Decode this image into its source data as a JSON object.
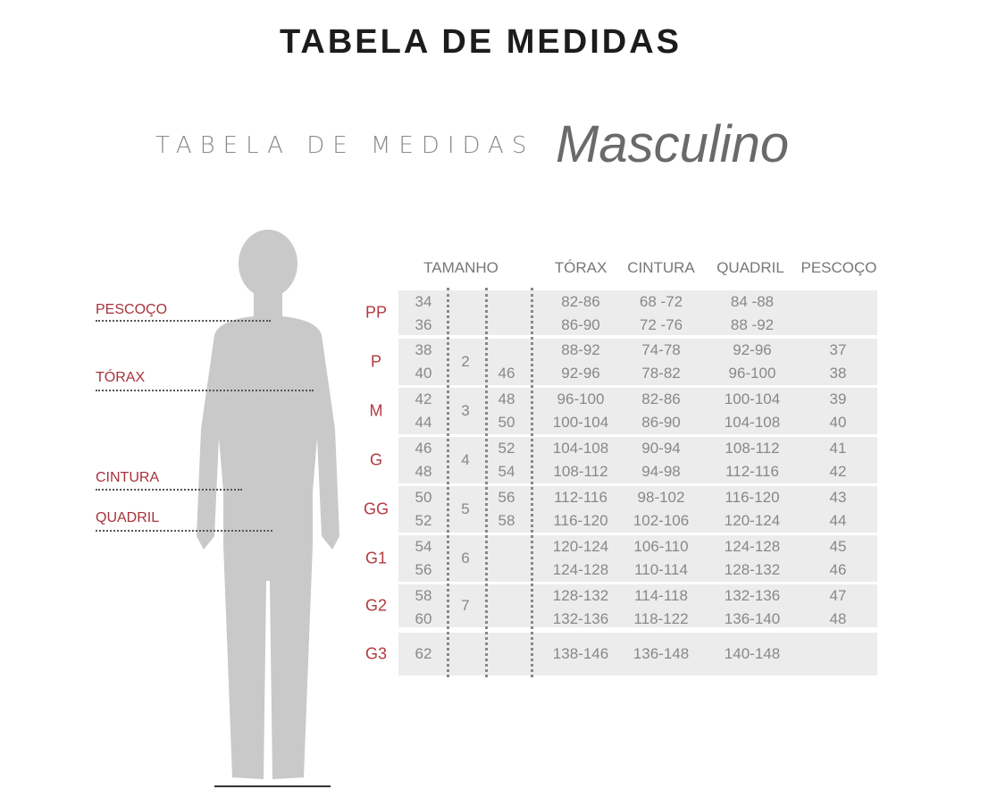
{
  "title": "TABELA DE MEDIDAS",
  "subtitle": "TABELA DE MEDIDAS",
  "subtitle_emphasis": "Masculino",
  "colors": {
    "accent": "#b23a3f",
    "silhouette": "#c9c9c9",
    "band": "#ececec"
  },
  "body_labels": [
    "PESCOÇO",
    "TÓRAX",
    "CINTURA",
    "QUADRIL"
  ],
  "headers": {
    "tamanho": "TAMANHO",
    "torax": "TÓRAX",
    "cintura": "CINTURA",
    "quadril": "QUADRIL",
    "pescoco": "PESCOÇO"
  },
  "groups": [
    {
      "label": "PP",
      "us": "",
      "rows": [
        [
          "34",
          "",
          "82-86",
          "68 -72",
          "84 -88",
          ""
        ],
        [
          "36",
          "",
          "86-90",
          "72 -76",
          "88 -92",
          ""
        ]
      ]
    },
    {
      "label": "P",
      "us": "2",
      "rows": [
        [
          "38",
          "",
          "88-92",
          "74-78",
          "92-96",
          "37"
        ],
        [
          "40",
          "46",
          "92-96",
          "78-82",
          "96-100",
          "38"
        ]
      ]
    },
    {
      "label": "M",
      "us": "3",
      "rows": [
        [
          "42",
          "48",
          "96-100",
          "82-86",
          "100-104",
          "39"
        ],
        [
          "44",
          "50",
          "100-104",
          "86-90",
          "104-108",
          "40"
        ]
      ]
    },
    {
      "label": "G",
      "us": "4",
      "rows": [
        [
          "46",
          "52",
          "104-108",
          "90-94",
          "108-112",
          "41"
        ],
        [
          "48",
          "54",
          "108-112",
          "94-98",
          "112-116",
          "42"
        ]
      ]
    },
    {
      "label": "GG",
      "us": "5",
      "rows": [
        [
          "50",
          "56",
          "112-116",
          "98-102",
          "116-120",
          "43"
        ],
        [
          "52",
          "58",
          "116-120",
          "102-106",
          "120-124",
          "44"
        ]
      ]
    },
    {
      "label": "G1",
      "us": "6",
      "rows": [
        [
          "54",
          "",
          "120-124",
          "106-110",
          "124-128",
          "45"
        ],
        [
          "56",
          "",
          "124-128",
          "110-114",
          "128-132",
          "46"
        ]
      ]
    },
    {
      "label": "G2",
      "us": "7",
      "rows": [
        [
          "58",
          "",
          "128-132",
          "114-118",
          "132-136",
          "47"
        ],
        [
          "60",
          "",
          "132-136",
          "118-122",
          "136-140",
          "48"
        ]
      ]
    },
    {
      "label": "G3",
      "us": "",
      "rows": [
        [
          "62",
          "",
          "138-146",
          "136-148",
          "140-148",
          ""
        ]
      ]
    }
  ]
}
